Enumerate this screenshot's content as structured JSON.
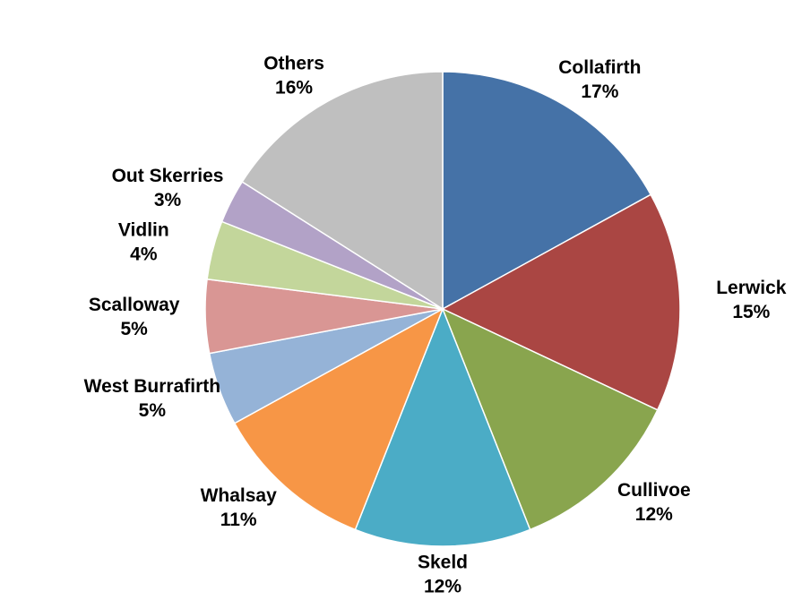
{
  "chart_data": {
    "type": "pie",
    "categories": [
      "Collafirth",
      "Lerwick",
      "Cullivoe",
      "Skeld",
      "Whalsay",
      "West Burrafirth",
      "Scalloway",
      "Vidlin",
      "Out Skerries",
      "Others"
    ],
    "values": [
      17,
      15,
      12,
      12,
      11,
      5,
      5,
      4,
      3,
      16
    ],
    "value_labels": [
      "17%",
      "15%",
      "12%",
      "12%",
      "11%",
      "5%",
      "5%",
      "4%",
      "3%",
      "16%"
    ],
    "colors": [
      "#4572A7",
      "#AA4643",
      "#89A54E",
      "#4BACC6",
      "#F79646",
      "#95B3D7",
      "#D99694",
      "#C3D69B",
      "#B2A2C7",
      "#BFBFBF"
    ]
  }
}
